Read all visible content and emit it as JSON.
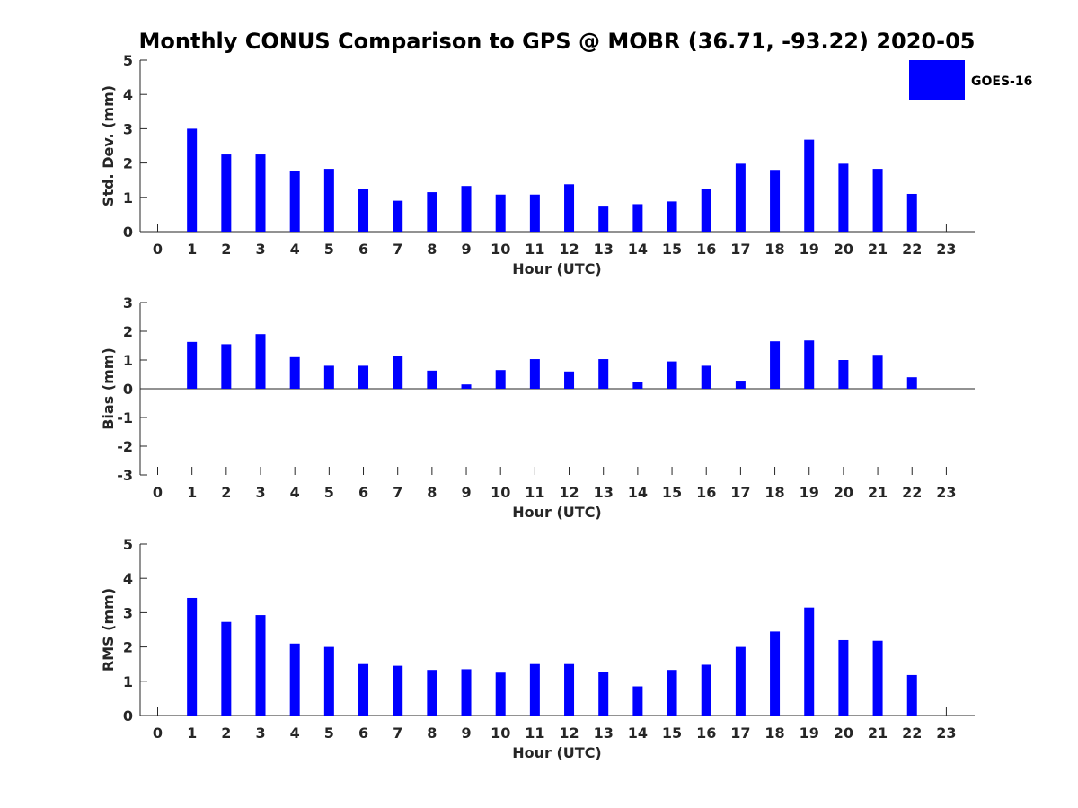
{
  "title": "Monthly CONUS Comparison to GPS @ MOBR (36.71, -93.22) 2020-05",
  "legend": {
    "label": "GOES-16",
    "color": "#0000ff"
  },
  "chart_data": [
    {
      "type": "bar",
      "title": "Monthly CONUS Comparison to GPS @ MOBR (36.71, -93.22) 2020-05",
      "xlabel": "Hour (UTC)",
      "ylabel": "Std. Dev. (mm)",
      "ylim": [
        0,
        5
      ],
      "yticks": [
        "0",
        "1",
        "2",
        "3",
        "4",
        "5"
      ],
      "categories": [
        "0",
        "1",
        "2",
        "3",
        "4",
        "5",
        "6",
        "7",
        "8",
        "9",
        "10",
        "11",
        "12",
        "13",
        "14",
        "15",
        "16",
        "17",
        "18",
        "19",
        "20",
        "21",
        "22",
        "23"
      ],
      "series": [
        {
          "name": "GOES-16",
          "values": [
            null,
            3.0,
            2.25,
            2.25,
            1.78,
            1.83,
            1.25,
            0.9,
            1.15,
            1.33,
            1.08,
            1.08,
            1.38,
            0.73,
            0.8,
            0.88,
            1.25,
            1.98,
            1.8,
            2.68,
            1.98,
            1.83,
            1.1,
            null
          ]
        }
      ]
    },
    {
      "type": "bar",
      "xlabel": "Hour (UTC)",
      "ylabel": "Bias (mm)",
      "ylim": [
        -3,
        3
      ],
      "yticks": [
        "-3",
        "-2",
        "-1",
        "0",
        "1",
        "2",
        "3"
      ],
      "categories": [
        "0",
        "1",
        "2",
        "3",
        "4",
        "5",
        "6",
        "7",
        "8",
        "9",
        "10",
        "11",
        "12",
        "13",
        "14",
        "15",
        "16",
        "17",
        "18",
        "19",
        "20",
        "21",
        "22",
        "23"
      ],
      "series": [
        {
          "name": "GOES-16",
          "values": [
            null,
            1.63,
            1.55,
            1.9,
            1.1,
            0.8,
            0.8,
            1.13,
            0.63,
            0.15,
            0.65,
            1.03,
            0.6,
            1.03,
            0.25,
            0.95,
            0.8,
            0.28,
            1.65,
            1.68,
            1.0,
            1.18,
            0.4,
            null
          ]
        }
      ]
    },
    {
      "type": "bar",
      "xlabel": "Hour (UTC)",
      "ylabel": "RMS (mm)",
      "ylim": [
        0,
        5
      ],
      "yticks": [
        "0",
        "1",
        "2",
        "3",
        "4",
        "5"
      ],
      "categories": [
        "0",
        "1",
        "2",
        "3",
        "4",
        "5",
        "6",
        "7",
        "8",
        "9",
        "10",
        "11",
        "12",
        "13",
        "14",
        "15",
        "16",
        "17",
        "18",
        "19",
        "20",
        "21",
        "22",
        "23"
      ],
      "series": [
        {
          "name": "GOES-16",
          "values": [
            null,
            3.43,
            2.73,
            2.93,
            2.1,
            2.0,
            1.5,
            1.45,
            1.33,
            1.35,
            1.25,
            1.5,
            1.5,
            1.28,
            0.85,
            1.33,
            1.48,
            2.0,
            2.45,
            3.15,
            2.2,
            2.18,
            1.18,
            null
          ]
        }
      ]
    }
  ]
}
